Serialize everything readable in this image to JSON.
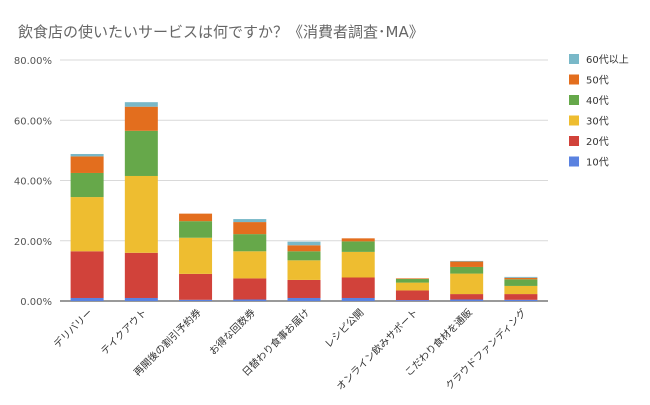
{
  "chart_data": {
    "type": "bar",
    "stacked": true,
    "title": "飲食店の使いたいサービスは何ですか？《消費者調査･MA》",
    "categories": [
      "デリバリー",
      "テイクアウト",
      "再開後の割引予約券",
      "お得な回数券",
      "日替わり食事お届け",
      "レシピ公開",
      "オンライン飲みサポート",
      "こだわり食材を通販",
      "クラウドファンディング"
    ],
    "yticks": [
      "0.00%",
      "20.00%",
      "40.00%",
      "60.00%",
      "80.00%"
    ],
    "ylim": [
      0,
      80
    ],
    "grid": true,
    "legend_position": "right",
    "series": [
      {
        "name": "10代",
        "color": "#5a82e0",
        "values": [
          1.0,
          1.0,
          0.4,
          0.5,
          1.0,
          1.0,
          0.3,
          0.5,
          0.4
        ]
      },
      {
        "name": "20代",
        "color": "#d1423a",
        "values": [
          15.5,
          15.0,
          8.6,
          7.0,
          6.0,
          6.8,
          3.2,
          1.8,
          1.9
        ]
      },
      {
        "name": "30代",
        "color": "#eebd30",
        "values": [
          18.0,
          25.5,
          12.0,
          9.0,
          6.5,
          8.5,
          2.6,
          6.8,
          2.7
        ]
      },
      {
        "name": "40代",
        "color": "#66a84a",
        "values": [
          8.0,
          15.0,
          5.5,
          5.7,
          3.0,
          3.5,
          1.2,
          2.2,
          2.2
        ]
      },
      {
        "name": "50代",
        "color": "#e36e1e",
        "values": [
          5.5,
          8.0,
          2.5,
          4.0,
          2.0,
          1.0,
          0.2,
          1.8,
          0.5
        ]
      },
      {
        "name": "60代以上",
        "color": "#79b8c8",
        "values": [
          0.8,
          1.5,
          0.0,
          1.0,
          1.2,
          0.0,
          0.0,
          0.2,
          0.3
        ]
      }
    ]
  }
}
